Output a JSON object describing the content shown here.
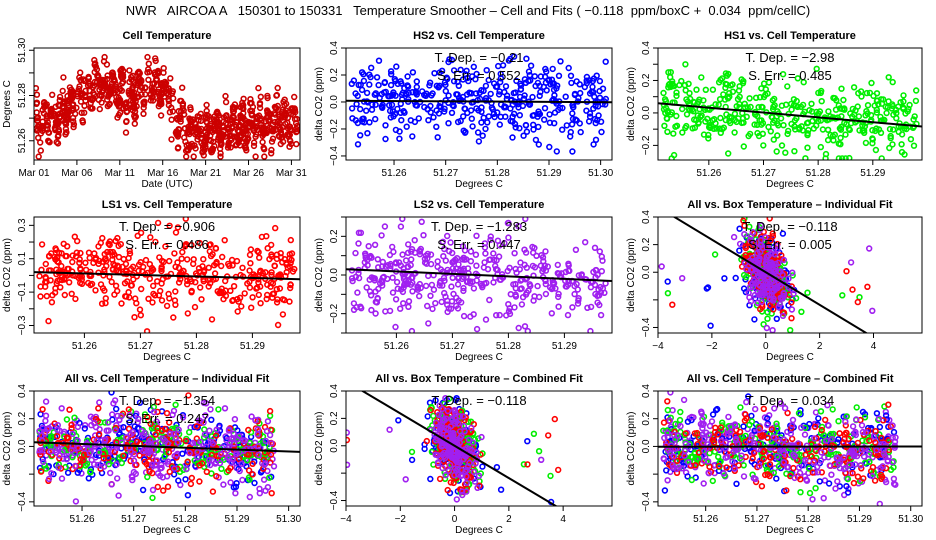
{
  "title": "NWR   AIRCOA A   150301 to 150331   Temperature Smoother – Cell and Fits ( −0.118  ppm/boxC +  0.034  ppm/cellC)",
  "colors": {
    "cell": "#cc0000",
    "HS2": "#0000ff",
    "HS1": "#00ee00",
    "LS1": "#ff0000",
    "LS2": "#a020f0",
    "fit": "#000000"
  },
  "chart_data": [
    {
      "id": "cell-temperature",
      "type": "scatter",
      "title": "Cell Temperature",
      "xlabel": "Date (UTC)",
      "ylabel": "Degrees C",
      "xticks": [
        "Mar 01",
        "Mar 06",
        "Mar 11",
        "Mar 16",
        "Mar 21",
        "Mar 26",
        "Mar 31"
      ],
      "xlim": [
        0,
        31
      ],
      "xtick_values": [
        0,
        5,
        10,
        15,
        20,
        25,
        30
      ],
      "yticks": [
        "51.26",
        "51.28",
        "51.30"
      ],
      "ytick_values": [
        51.26,
        51.27,
        51.28,
        51.29,
        51.3
      ],
      "ylim": [
        51.2515,
        51.301
      ],
      "series": [
        {
          "name": "cell",
          "color_key": "cell",
          "pattern": "daily-cycle"
        }
      ]
    },
    {
      "id": "hs2-vs-cell",
      "type": "scatter",
      "title": "HS2 vs. Cell Temperature",
      "xlabel": "Degrees C",
      "ylabel": "delta CO2 (ppm)",
      "xticks": [
        "51.26",
        "51.27",
        "51.28",
        "51.29",
        "51.30"
      ],
      "xtick_values": [
        51.26,
        51.27,
        51.28,
        51.29,
        51.3
      ],
      "xlim": [
        51.2507,
        51.3022
      ],
      "yticks": [
        "−0.4",
        "−0.2",
        "0.0",
        "0.2",
        "0.4"
      ],
      "ytick_values": [
        -0.4,
        -0.2,
        0.0,
        0.2,
        0.4
      ],
      "ylim": [
        -0.43,
        0.4
      ],
      "annotations": [
        "T. Dep. =  −0.21",
        "S. Err. =  0.552"
      ],
      "fit": {
        "slope": -0.21,
        "intercept_at_x0": 0.005,
        "x0": 51.27
      },
      "series": [
        {
          "name": "HS2",
          "color_key": "HS2",
          "slope": -0.21,
          "spread": 0.14
        }
      ]
    },
    {
      "id": "hs1-vs-cell",
      "type": "scatter",
      "title": "HS1 vs. Cell Temperature",
      "xlabel": "Degrees C",
      "ylabel": "delta CO2 (ppm)",
      "xticks": [
        "51.26",
        "51.27",
        "51.28",
        "51.29"
      ],
      "xtick_values": [
        51.26,
        51.27,
        51.28,
        51.29
      ],
      "xlim": [
        51.2507,
        51.299
      ],
      "yticks": [
        "−0.2",
        "0.0",
        "0.2",
        "0.4"
      ],
      "ytick_values": [
        -0.2,
        -0.1,
        0.0,
        0.1,
        0.2,
        0.3,
        0.4
      ],
      "ylim": [
        -0.29,
        0.4
      ],
      "annotations": [
        "T. Dep. =  −2.98",
        "S. Err. =  0.485"
      ],
      "fit": {
        "slope": -2.98,
        "intercept_at_x0": 0.06,
        "x0": 51.2507
      },
      "series": [
        {
          "name": "HS1",
          "color_key": "HS1",
          "slope": -2.98,
          "spread": 0.11
        }
      ]
    },
    {
      "id": "ls1-vs-cell",
      "type": "scatter",
      "title": "LS1 vs. Cell Temperature",
      "xlabel": "Degrees C",
      "ylabel": "delta CO2 (ppm)",
      "xticks": [
        "51.26",
        "51.27",
        "51.28",
        "51.29"
      ],
      "xtick_values": [
        51.26,
        51.27,
        51.28,
        51.29
      ],
      "xlim": [
        51.251,
        51.2985
      ],
      "yticks": [
        "−0.3",
        "−0.1",
        "0.1",
        "0.3"
      ],
      "ytick_values": [
        -0.3,
        -0.2,
        -0.1,
        0.0,
        0.1,
        0.2,
        0.3
      ],
      "ylim": [
        -0.345,
        0.35
      ],
      "annotations": [
        "T. Dep. =  −0.906",
        "S. Err. =  0.486"
      ],
      "fit": {
        "slope": -0.906,
        "intercept_at_x0": 0.02,
        "x0": 51.251
      },
      "series": [
        {
          "name": "LS1",
          "color_key": "LS1",
          "slope": -0.906,
          "spread": 0.12
        }
      ]
    },
    {
      "id": "ls2-vs-cell",
      "type": "scatter",
      "title": "LS2 vs. Cell Temperature",
      "xlabel": "Degrees C",
      "ylabel": "delta CO2 (ppm)",
      "xticks": [
        "51.26",
        "51.27",
        "51.28",
        "51.29"
      ],
      "xtick_values": [
        51.26,
        51.27,
        51.28,
        51.29
      ],
      "xlim": [
        51.251,
        51.2985
      ],
      "yticks": [
        "−0.2",
        "0.0",
        "0.2"
      ],
      "ytick_values": [
        -0.3,
        -0.2,
        -0.1,
        0.0,
        0.1,
        0.2,
        0.3
      ],
      "ylim": [
        -0.3,
        0.3
      ],
      "annotations": [
        "T. Dep. =  −1.283",
        "S. Err. =  0.447"
      ],
      "fit": {
        "slope": -1.283,
        "intercept_at_x0": 0.03,
        "x0": 51.251
      },
      "series": [
        {
          "name": "LS2",
          "color_key": "LS2",
          "slope": -1.283,
          "spread": 0.11
        }
      ]
    },
    {
      "id": "all-vs-box-individual",
      "type": "scatter",
      "title": "All vs. Box Temperature – Individual Fit",
      "xlabel": "Degrees C",
      "ylabel": "delta CO2 (ppm)",
      "xticks": [
        "−4",
        "−2",
        "0",
        "2",
        "4"
      ],
      "xtick_values": [
        -4,
        -2,
        0,
        2,
        4
      ],
      "xlim": [
        -4.0,
        5.8
      ],
      "yticks": [
        "−0.4",
        "0.0",
        "0.2",
        "0.4"
      ],
      "ytick_values": [
        -0.4,
        -0.2,
        0.0,
        0.2,
        0.4
      ],
      "ylim": [
        -0.44,
        0.4
      ],
      "annotations": [
        "T. Dep. =  −0.118",
        "S. Err. =  0.005"
      ],
      "fit": {
        "slope": -0.118,
        "intercept_at_x0": 0.0,
        "x0": 0
      },
      "series": [
        {
          "name": "HS2",
          "color_key": "HS2"
        },
        {
          "name": "HS1",
          "color_key": "HS1"
        },
        {
          "name": "LS1",
          "color_key": "LS1"
        },
        {
          "name": "LS2",
          "color_key": "LS2"
        }
      ]
    },
    {
      "id": "all-vs-cell-individual",
      "type": "scatter",
      "title": "All vs. Cell Temperature – Individual Fit",
      "xlabel": "Degrees C",
      "ylabel": "delta CO2 (ppm)",
      "xticks": [
        "51.26",
        "51.27",
        "51.28",
        "51.29",
        "51.30"
      ],
      "xtick_values": [
        51.26,
        51.27,
        51.28,
        51.29,
        51.3
      ],
      "xlim": [
        51.2507,
        51.3022
      ],
      "yticks": [
        "−0.4",
        "0.0",
        "0.2",
        "0.4"
      ],
      "ytick_values": [
        -0.4,
        -0.2,
        0.0,
        0.2,
        0.4
      ],
      "ylim": [
        -0.43,
        0.4
      ],
      "annotations": [
        "T. Dep. =  −1.354",
        "S. Err. =  0.247"
      ],
      "fit": {
        "slope": -1.354,
        "intercept_at_x0": 0.03,
        "x0": 51.2507
      },
      "series": [
        {
          "name": "HS2",
          "color_key": "HS2"
        },
        {
          "name": "HS1",
          "color_key": "HS1"
        },
        {
          "name": "LS1",
          "color_key": "LS1"
        },
        {
          "name": "LS2",
          "color_key": "LS2"
        }
      ]
    },
    {
      "id": "all-vs-box-combined",
      "type": "scatter",
      "title": "All vs. Box Temperature – Combined Fit",
      "xlabel": "Degrees C",
      "ylabel": "delta CO2 (ppm)",
      "xticks": [
        "−4",
        "−2",
        "0",
        "2",
        "4"
      ],
      "xtick_values": [
        -4,
        -2,
        0,
        2,
        4
      ],
      "xlim": [
        -4.0,
        5.8
      ],
      "yticks": [
        "−0.4",
        "0.0",
        "0.2",
        "0.4"
      ],
      "ytick_values": [
        -0.4,
        -0.2,
        0.0,
        0.2,
        0.4
      ],
      "ylim": [
        -0.44,
        0.4
      ],
      "annotations": [
        "T. Dep. =  −0.118"
      ],
      "fit": {
        "slope": -0.118,
        "intercept_at_x0": 0.0,
        "x0": 0
      },
      "series": [
        {
          "name": "HS2",
          "color_key": "HS2"
        },
        {
          "name": "HS1",
          "color_key": "HS1"
        },
        {
          "name": "LS1",
          "color_key": "LS1"
        },
        {
          "name": "LS2",
          "color_key": "LS2"
        }
      ]
    },
    {
      "id": "all-vs-cell-combined",
      "type": "scatter",
      "title": "All vs. Cell Temperature – Combined Fit",
      "xlabel": "Degrees C",
      "ylabel": "delta CO2 (ppm)",
      "xticks": [
        "51.26",
        "51.27",
        "51.28",
        "51.29",
        "51.30"
      ],
      "xtick_values": [
        51.26,
        51.27,
        51.28,
        51.29,
        51.3
      ],
      "xlim": [
        51.2507,
        51.3022
      ],
      "yticks": [
        "−0.4",
        "0.0",
        "0.2",
        "0.4"
      ],
      "ytick_values": [
        -0.4,
        -0.2,
        0.0,
        0.2,
        0.4
      ],
      "ylim": [
        -0.43,
        0.4
      ],
      "annotations": [
        "T. Dep. =  0.034"
      ],
      "fit": {
        "slope": 0.034,
        "intercept_at_x0": -0.002,
        "x0": 51.2507
      },
      "series": [
        {
          "name": "HS2",
          "color_key": "HS2"
        },
        {
          "name": "HS1",
          "color_key": "HS1"
        },
        {
          "name": "LS1",
          "color_key": "LS1"
        },
        {
          "name": "LS2",
          "color_key": "LS2"
        }
      ]
    }
  ]
}
